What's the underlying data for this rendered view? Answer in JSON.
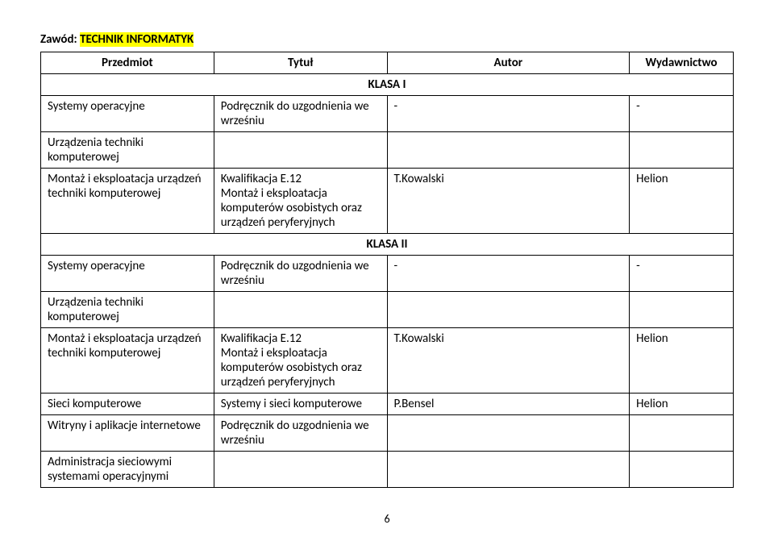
{
  "page_number": "6",
  "zawod_label": "Zawód: ",
  "zawod_value": "TECHNIK INFORMATYK",
  "headers": {
    "col1": "Przedmiot",
    "col2": "Tytuł",
    "col3": "Autor",
    "col4": "Wydawnictwo"
  },
  "sections": {
    "klasa1": "KLASA I",
    "klasa2": "KLASA II"
  },
  "rows": {
    "r1": {
      "subject": "Systemy operacyjne",
      "title": "Podręcznik do uzgodnienia we wrześniu",
      "author": "-",
      "publisher": "-"
    },
    "r2": {
      "subject": "Urządzenia techniki komputerowej",
      "title": "",
      "author": "",
      "publisher": ""
    },
    "r3": {
      "subject": "Montaż i eksploatacja urządzeń techniki komputerowej",
      "title": "Kwalifikacja E.12\nMontaż i eksploatacja komputerów osobistych oraz urządzeń peryferyjnych",
      "author": "T.Kowalski",
      "publisher": "Helion"
    },
    "r4": {
      "subject": "Systemy operacyjne",
      "title": "Podręcznik do uzgodnienia we wrześniu",
      "author": "-",
      "publisher": "-"
    },
    "r5": {
      "subject": "Urządzenia techniki komputerowej",
      "title": "",
      "author": "",
      "publisher": ""
    },
    "r6": {
      "subject": "Montaż i eksploatacja urządzeń techniki komputerowej",
      "title": "Kwalifikacja E.12\nMontaż i eksploatacja komputerów osobistych oraz urządzeń peryferyjnych",
      "author": "T.Kowalski",
      "publisher": "Helion"
    },
    "r7": {
      "subject": "Sieci komputerowe",
      "title": "Systemy i sieci komputerowe",
      "author": "P.Bensel",
      "publisher": "Helion"
    },
    "r8": {
      "subject": "Witryny i aplikacje internetowe",
      "title": "Podręcznik do uzgodnienia we wrześniu",
      "author": "",
      "publisher": ""
    },
    "r9": {
      "subject": "Administracja sieciowymi systemami operacyjnymi",
      "title": "",
      "author": "",
      "publisher": ""
    }
  }
}
